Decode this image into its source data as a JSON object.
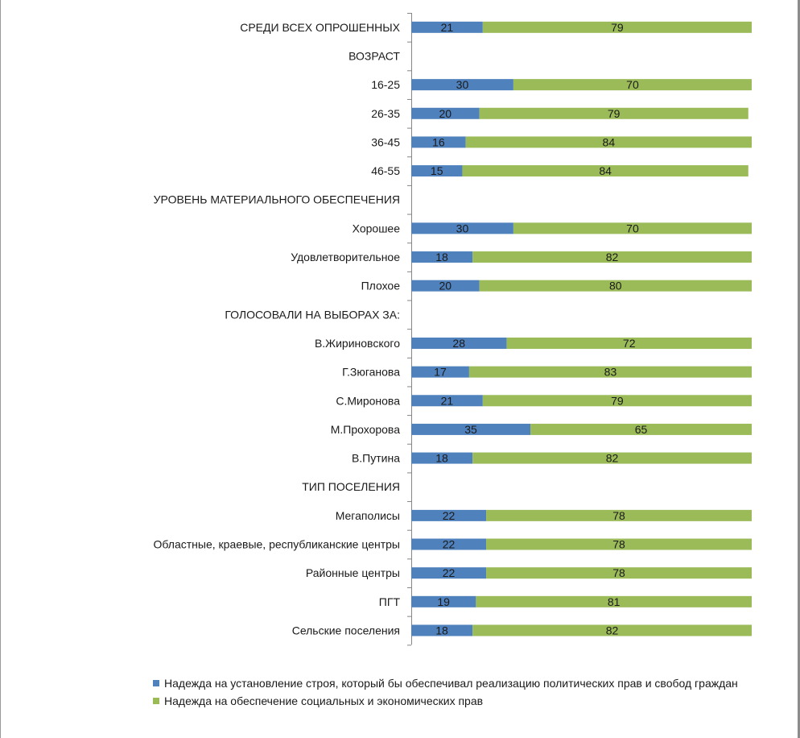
{
  "chart_data": {
    "type": "bar",
    "stacked": true,
    "orientation": "horizontal",
    "categories": [
      "СРЕДИ ВСЕХ ОПРОШЕННЫХ",
      "ВОЗРАСТ",
      "16-25",
      "26-35",
      "36-45",
      "46-55",
      "УРОВЕНЬ МАТЕРИАЛЬНОГО ОБЕСПЕЧЕНИЯ",
      "Хорошее",
      "Удовлетворительное",
      "Плохое",
      "ГОЛОСОВАЛИ НА ВЫБОРАХ ЗА:",
      "В.Жириновского",
      "Г.Зюганова",
      "С.Миронова",
      "М.Прохорова",
      "В.Путина",
      "ТИП ПОСЕЛЕНИЯ",
      "Мегаполисы",
      "Областные, краевые, республиканские центры",
      "Районные центры",
      "ПГТ",
      "Сельские поселения"
    ],
    "series": [
      {
        "name": "Надежда на установление строя, который бы обеспечивал реализацию политических прав и свобод граждан",
        "color": "#4f81bd",
        "values": [
          21,
          null,
          30,
          20,
          16,
          15,
          null,
          30,
          18,
          20,
          null,
          28,
          17,
          21,
          35,
          18,
          null,
          22,
          22,
          22,
          19,
          18
        ]
      },
      {
        "name": "Надежда на обеспечение социальных и экономических прав",
        "color": "#9bbb59",
        "values": [
          79,
          null,
          70,
          79,
          84,
          84,
          null,
          70,
          82,
          80,
          null,
          72,
          83,
          79,
          65,
          82,
          null,
          78,
          78,
          78,
          81,
          82
        ]
      }
    ],
    "xlim": [
      0,
      100
    ],
    "legend_position": "bottom"
  },
  "legend": {
    "item1": "Надежда на установление строя, который бы обеспечивал реализацию политических прав и свобод граждан",
    "item2": "Надежда на обеспечение социальных и экономических прав"
  }
}
